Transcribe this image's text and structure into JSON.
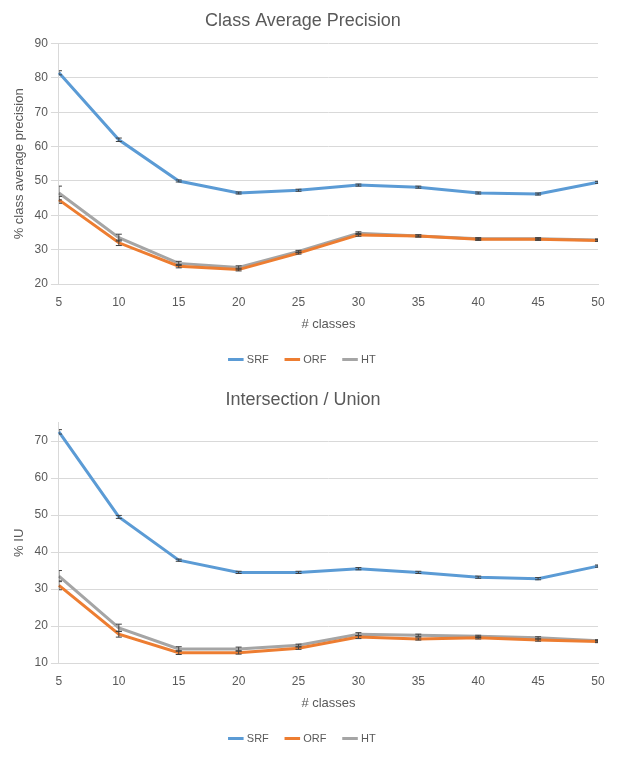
{
  "chart_data": [
    {
      "type": "line",
      "title": "Class Average Precision",
      "x_label": "# classes",
      "y_label": "% class average precision",
      "categories": [
        5,
        10,
        15,
        20,
        25,
        30,
        35,
        40,
        45,
        50
      ],
      "series": [
        {
          "name": "SRF",
          "color": "#5b9bd5",
          "values": [
            81.5,
            62,
            50,
            46.5,
            47.3,
            48.8,
            48.2,
            46.5,
            46.2,
            49.6
          ],
          "errors": [
            0.6,
            0.5,
            0.3,
            0.3,
            0.3,
            0.3,
            0.3,
            0.3,
            0.3,
            0.3
          ]
        },
        {
          "name": "ORF",
          "color": "#ed7d31",
          "values": [
            44.5,
            32,
            25.2,
            24.2,
            29,
            34.3,
            34,
            33,
            33,
            32.7
          ],
          "errors": [
            1,
            0.8,
            0.5,
            0.4,
            0.3,
            0.4,
            0.3,
            0.3,
            0.3,
            0.3
          ]
        },
        {
          "name": "HT",
          "color": "#a5a5a5",
          "values": [
            46.5,
            33.5,
            26,
            24.8,
            29.5,
            34.8,
            34,
            33.2,
            33.2,
            32.8
          ],
          "errors": [
            2,
            1,
            0.6,
            0.5,
            0.3,
            0.4,
            0.3,
            0.3,
            0.3,
            0.3
          ]
        }
      ],
      "ylim": [
        20,
        90
      ],
      "yticks": [
        20,
        30,
        40,
        50,
        60,
        70,
        80,
        90
      ],
      "grid": true,
      "legend": "bottom"
    },
    {
      "type": "line",
      "title": "Intersection / Union",
      "x_label": "# classes",
      "y_label": "% IU",
      "categories": [
        5,
        10,
        15,
        20,
        25,
        30,
        35,
        40,
        45,
        50
      ],
      "series": [
        {
          "name": "SRF",
          "color": "#5b9bd5",
          "values": [
            72.5,
            49.5,
            37.8,
            34.5,
            34.5,
            35.5,
            34.5,
            33.2,
            32.8,
            36.2
          ],
          "errors": [
            0.6,
            0.4,
            0.3,
            0.3,
            0.3,
            0.3,
            0.3,
            0.3,
            0.3,
            0.3
          ]
        },
        {
          "name": "ORF",
          "color": "#ed7d31",
          "values": [
            31,
            17.8,
            12.8,
            12.8,
            14,
            17,
            16.5,
            16.8,
            16.2,
            15.8
          ],
          "errors": [
            1.2,
            0.8,
            0.5,
            0.4,
            0.3,
            0.4,
            0.3,
            0.3,
            0.3,
            0.3
          ]
        },
        {
          "name": "HT",
          "color": "#a5a5a5",
          "values": [
            33.5,
            19.5,
            13.8,
            13.8,
            14.8,
            17.8,
            17.5,
            17.2,
            16.8,
            16
          ],
          "errors": [
            1.5,
            1,
            0.6,
            0.5,
            0.3,
            0.4,
            0.3,
            0.3,
            0.3,
            0.3
          ]
        }
      ],
      "ylim": [
        10,
        75
      ],
      "yticks": [
        10,
        20,
        30,
        40,
        50,
        60,
        70
      ],
      "grid": true,
      "legend": "bottom"
    }
  ]
}
